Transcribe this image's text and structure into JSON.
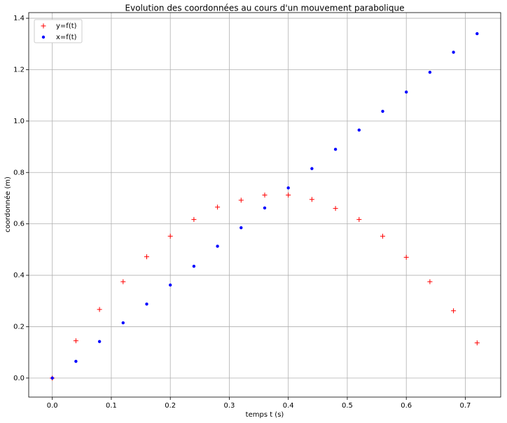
{
  "chart_data": {
    "type": "scatter",
    "title": "Evolution des coordonnées au cours d'un mouvement parabolique",
    "x_label": "temps t (s)",
    "y_label": "coordonnée (m)",
    "x": [
      0,
      0.04,
      0.08,
      0.12,
      0.16,
      0.2,
      0.24,
      0.28,
      0.32,
      0.36,
      0.4,
      0.44,
      0.48,
      0.52,
      0.56,
      0.6,
      0.64,
      0.68,
      0.72
    ],
    "series": [
      {
        "name": "y=f(t)",
        "color": "#ff0000",
        "marker": "+",
        "values": [
          0,
          0.145,
          0.267,
          0.375,
          0.472,
          0.552,
          0.617,
          0.665,
          0.692,
          0.712,
          0.712,
          0.695,
          0.66,
          0.617,
          0.552,
          0.47,
          0.375,
          0.262,
          0.137
        ]
      },
      {
        "name": "x=f(t)",
        "color": "#0000ff",
        "marker": ".",
        "values": [
          0,
          0.065,
          0.142,
          0.215,
          0.288,
          0.362,
          0.435,
          0.513,
          0.585,
          0.662,
          0.74,
          0.815,
          0.89,
          0.965,
          1.038,
          1.113,
          1.19,
          1.268,
          1.34
        ]
      }
    ],
    "xlim": [
      -0.04,
      0.76
    ],
    "ylim": [
      -0.074,
      1.422
    ],
    "xticks": [
      {
        "value": 0,
        "label": "0.0"
      },
      {
        "value": 0.1,
        "label": "0.1"
      },
      {
        "value": 0.2,
        "label": "0.2"
      },
      {
        "value": 0.3,
        "label": "0.3"
      },
      {
        "value": 0.4,
        "label": "0.4"
      },
      {
        "value": 0.5,
        "label": "0.5"
      },
      {
        "value": 0.6,
        "label": "0.6"
      },
      {
        "value": 0.7,
        "label": "0.7"
      }
    ],
    "yticks": [
      {
        "value": 0,
        "label": "0.0"
      },
      {
        "value": 0.2,
        "label": "0.2"
      },
      {
        "value": 0.4,
        "label": "0.4"
      },
      {
        "value": 0.6,
        "label": "0.6"
      },
      {
        "value": 0.8,
        "label": "0.8"
      },
      {
        "value": 1,
        "label": "1.0"
      },
      {
        "value": 1.2,
        "label": "1.2"
      },
      {
        "value": 1.4,
        "label": "1.4"
      }
    ],
    "grid": true,
    "legend": "upper left"
  }
}
